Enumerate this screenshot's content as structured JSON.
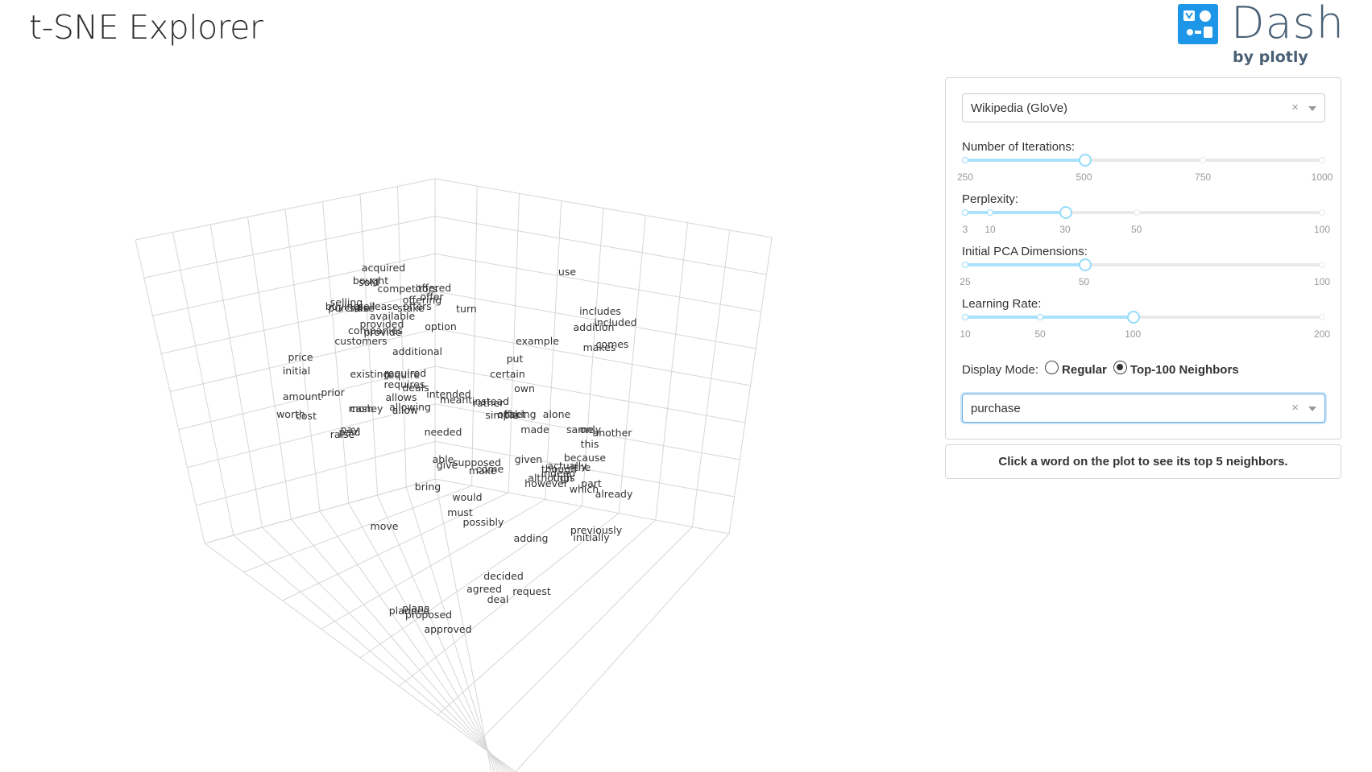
{
  "app": {
    "title": "t-SNE Explorer"
  },
  "logo": {
    "word": "Dash",
    "sub": "by plotly"
  },
  "controls": {
    "dataset": {
      "value": "Wikipedia (GloVe)",
      "clear": "×"
    },
    "iterations": {
      "label": "Number of Iterations:",
      "value": 500,
      "min": 250,
      "max": 1000,
      "marks": [
        "250",
        "500",
        "750",
        "1000"
      ],
      "mark_values": [
        250,
        500,
        750,
        1000
      ]
    },
    "perplexity": {
      "label": "Perplexity:",
      "value": 30,
      "min": 3,
      "max": 100,
      "marks": [
        "3",
        "10",
        "30",
        "50",
        "100"
      ],
      "mark_values": [
        3,
        10,
        30,
        50,
        100
      ]
    },
    "pca": {
      "label": "Initial PCA Dimensions:",
      "value": 50,
      "min": 25,
      "max": 100,
      "marks": [
        "25",
        "50",
        "100"
      ],
      "mark_values": [
        25,
        50,
        100
      ]
    },
    "learning_rate": {
      "label": "Learning Rate:",
      "value": 100,
      "min": 10,
      "max": 200,
      "marks": [
        "10",
        "50",
        "100",
        "200"
      ],
      "mark_values": [
        10,
        50,
        100,
        200
      ]
    },
    "display_mode": {
      "label": "Display Mode:",
      "options": [
        "Regular",
        "Top-100 Neighbors"
      ],
      "selected": "Top-100 Neighbors"
    },
    "word_search": {
      "value": "purchase",
      "clear": "×"
    }
  },
  "info": {
    "text": "Click a word on the plot to see its top 5 neighbors."
  },
  "plot": {
    "words": [
      "acquired",
      "bought",
      "sold",
      "competitors",
      "offered",
      "offer",
      "offering",
      "offers",
      "selling",
      "buying",
      "sale",
      "sell",
      "lease",
      "stake",
      "purchase",
      "turn",
      "use",
      "available",
      "provided",
      "companies",
      "provide",
      "customers",
      "option",
      "includes",
      "addition",
      "included",
      "example",
      "makes",
      "comes",
      "additional",
      "price",
      "put",
      "initial",
      "existing",
      "required",
      "require",
      "requires",
      "certain",
      "deals",
      "own",
      "amount",
      "prior",
      "allows",
      "intended",
      "meant",
      "instead",
      "rather",
      "cash",
      "money",
      "allowing",
      "allow",
      "worth",
      "cost",
      "simple",
      "offset",
      "taking",
      "alone",
      "pay",
      "paid",
      "raise",
      "needed",
      "made",
      "same",
      "only",
      "another",
      "this",
      "able",
      "supposed",
      "give",
      "make",
      "come",
      "given",
      "because",
      "actually",
      "the",
      "though",
      "indeed",
      "although",
      "thus",
      "however",
      "part",
      "which",
      "already",
      "bring",
      "would",
      "must",
      "possibly",
      "move",
      "previously",
      "initially",
      "adding",
      "decided",
      "agreed",
      "request",
      "deal",
      "planned",
      "plans",
      "proposed",
      "approved"
    ]
  }
}
